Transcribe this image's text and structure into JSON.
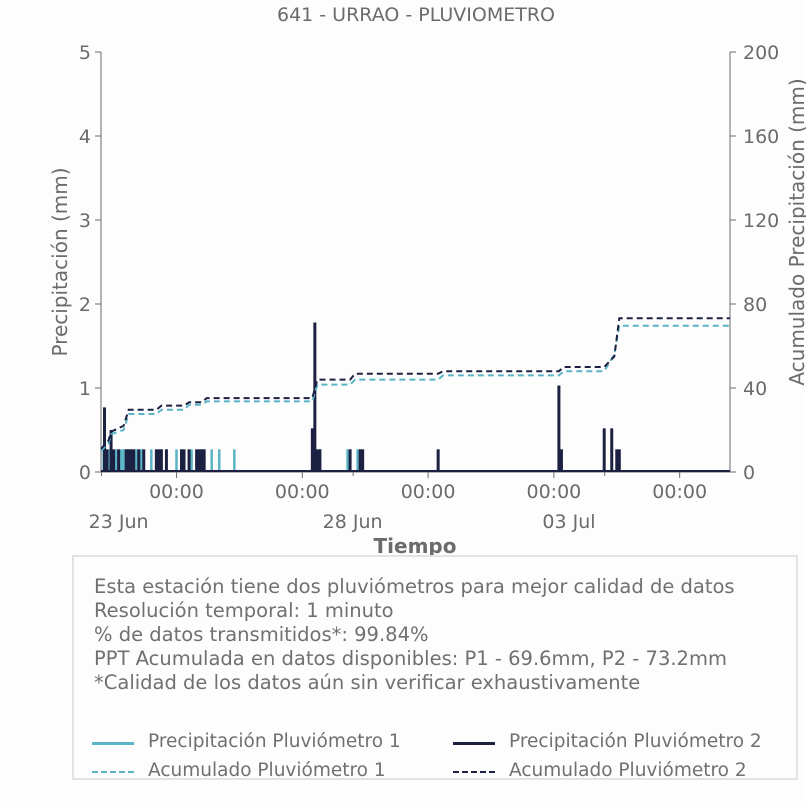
{
  "chart_data": {
    "type": "line",
    "title": "641 - URRAO - PLUVIOMETRO",
    "xlabel": "Tiempo",
    "ylabel": "Precipitación (mm)",
    "y2label": "Acumulado Precipitación (mm)",
    "ylim": [
      0,
      5
    ],
    "y2lim": [
      0,
      200
    ],
    "yticks": [
      "0",
      "1",
      "2",
      "3",
      "4",
      "5"
    ],
    "y2ticks": [
      "0",
      "40",
      "80",
      "120",
      "160",
      "200"
    ],
    "x_range_days": [
      0,
      12.5
    ],
    "xticks_time": [
      "00:00",
      "00:00",
      "00:00",
      "00:00",
      "00:00"
    ],
    "xticks_date": [
      "23 Jun",
      "28 Jun",
      "03 Jul"
    ],
    "grid": false,
    "series": [
      {
        "name": "Precipitación Pluviómetro 1",
        "axis": "left",
        "color": "#5ab4c5",
        "style": "solid",
        "x": [
          0.05,
          0.1,
          0.15,
          0.2,
          0.3,
          0.4,
          0.45,
          0.5,
          0.55,
          0.6,
          0.7,
          0.8,
          1.0,
          1.2,
          1.5,
          1.8,
          2.2,
          2.35,
          2.65,
          4.2,
          4.35,
          4.9,
          5.1
        ],
        "y": [
          0.27,
          0.27,
          0.27,
          0.27,
          0.27,
          0.27,
          0.27,
          0.27,
          0.27,
          0.27,
          0.27,
          0.27,
          0.27,
          0.27,
          0.27,
          0.27,
          0.27,
          0.27,
          0.27,
          0.27,
          0.27,
          0.27,
          0.27
        ]
      },
      {
        "name": "Precipitación Pluviómetro 2",
        "axis": "left",
        "color": "#1c2142",
        "style": "solid",
        "x": [
          0.07,
          0.12,
          0.2,
          0.25,
          0.35,
          0.5,
          0.55,
          0.6,
          0.65,
          0.75,
          0.85,
          1.1,
          1.15,
          1.2,
          1.3,
          1.6,
          1.65,
          1.75,
          1.9,
          1.95,
          2.0,
          2.05,
          4.2,
          4.25,
          4.3,
          4.35,
          4.95,
          5.15,
          5.2,
          6.7,
          9.1,
          9.15,
          10.0,
          10.15,
          10.25,
          10.3
        ],
        "y": [
          0.77,
          0.27,
          0.5,
          0.27,
          0.27,
          0.27,
          0.27,
          0.27,
          0.27,
          0.27,
          0.27,
          0.27,
          0.27,
          0.27,
          0.27,
          0.27,
          0.27,
          0.27,
          0.27,
          0.27,
          0.27,
          0.27,
          0.52,
          1.78,
          0.27,
          0.27,
          0.27,
          0.27,
          0.27,
          0.27,
          1.03,
          0.27,
          0.52,
          0.52,
          0.27,
          0.27
        ]
      },
      {
        "name": "Acumulado Pluviómetro 1",
        "axis": "right",
        "color": "#5ab4c5",
        "style": "dashed",
        "x": [
          0.0,
          0.15,
          0.2,
          0.45,
          0.55,
          1.1,
          1.2,
          1.65,
          1.75,
          2.0,
          2.1,
          4.2,
          4.3,
          4.95,
          5.05,
          6.7,
          6.8,
          9.1,
          9.2,
          10.0,
          10.2,
          10.3,
          12.5
        ],
        "y": [
          10.0,
          13.6,
          18.0,
          20.0,
          27.6,
          27.6,
          29.6,
          29.6,
          32.0,
          32.0,
          33.6,
          33.6,
          41.6,
          41.6,
          44.0,
          44.0,
          46.0,
          46.0,
          48.0,
          48.0,
          56.0,
          69.6,
          69.6
        ]
      },
      {
        "name": "Acumulado Pluviómetro 2",
        "axis": "right",
        "color": "#1c2142",
        "style": "dashed",
        "x": [
          0.0,
          0.15,
          0.2,
          0.45,
          0.55,
          1.1,
          1.2,
          1.65,
          1.75,
          2.0,
          2.1,
          4.2,
          4.3,
          4.95,
          5.05,
          6.7,
          6.8,
          9.1,
          9.2,
          10.0,
          10.2,
          10.3,
          12.5
        ],
        "y": [
          11.0,
          15.0,
          19.2,
          22.0,
          29.6,
          29.6,
          31.6,
          31.6,
          33.2,
          33.2,
          35.2,
          35.2,
          44.0,
          44.0,
          46.8,
          46.8,
          48.0,
          48.0,
          50.0,
          50.0,
          55.0,
          73.2,
          73.2
        ]
      }
    ]
  },
  "info": {
    "lines": [
      "Esta estación tiene dos pluviómetros para mejor calidad de datos",
      "Resolución temporal: 1 minuto",
      "% de datos transmitidos*: 99.84%",
      "PPT Acumulada en datos disponibles: P1 - 69.6mm, P2 - 73.2mm",
      "*Calidad de los datos aún sin verificar exhaustivamente"
    ]
  },
  "legend": {
    "items": [
      {
        "label": "Precipitación Pluviómetro 1",
        "color": "#5ab4c5",
        "style": "solid"
      },
      {
        "label": "Precipitación Pluviómetro 2",
        "color": "#1c2142",
        "style": "solid"
      },
      {
        "label": "Acumulado Pluviómetro 1",
        "color": "#5ab4c5",
        "style": "dashed"
      },
      {
        "label": "Acumulado Pluviómetro 2",
        "color": "#1c2142",
        "style": "dashed"
      }
    ]
  }
}
